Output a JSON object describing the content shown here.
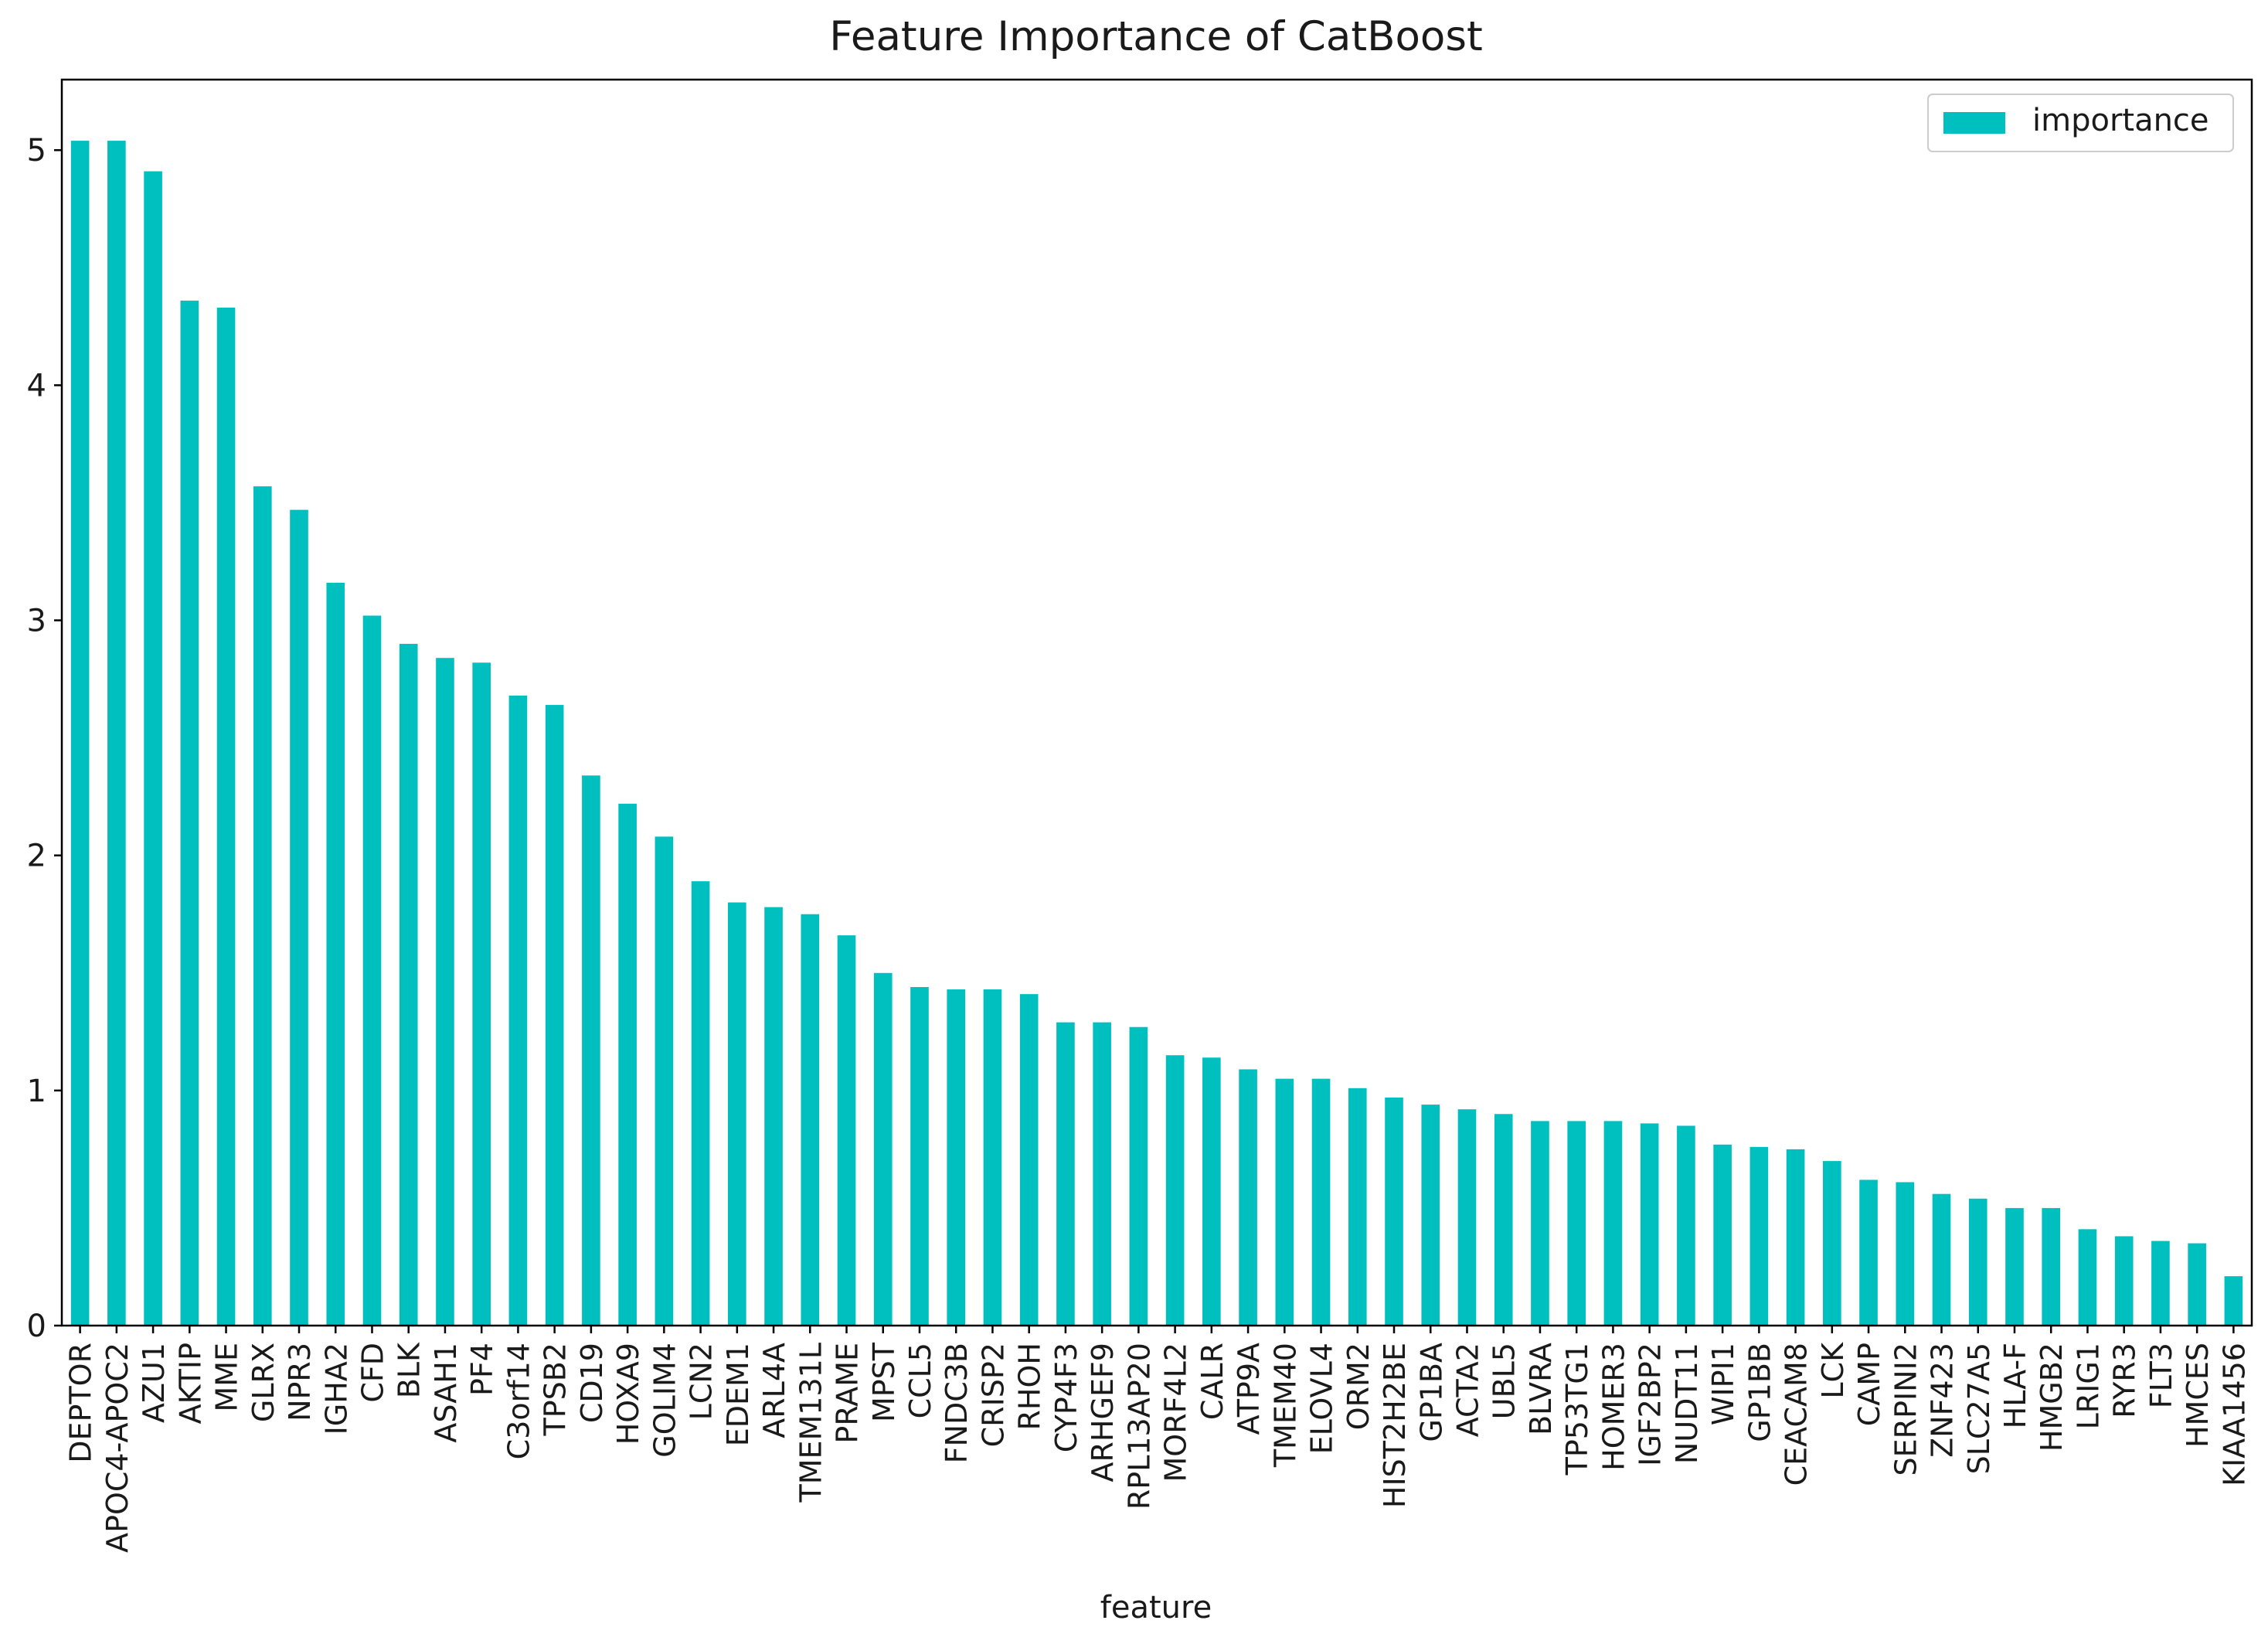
{
  "chart_data": {
    "type": "bar",
    "title": "Feature Importance of CatBoost",
    "xlabel": "feature",
    "ylabel": "",
    "ylim": [
      0,
      5.3
    ],
    "yticks": [
      0,
      1,
      2,
      3,
      4,
      5
    ],
    "grid": false,
    "legend": {
      "position": "top-right",
      "entries": [
        "importance"
      ]
    },
    "categories": [
      "DEPTOR",
      "APOC4-APOC2",
      "AZU1",
      "AKTIP",
      "MME",
      "GLRX",
      "NPR3",
      "IGHA2",
      "CFD",
      "BLK",
      "ASAH1",
      "PF4",
      "C3orf14",
      "TPSB2",
      "CD19",
      "HOXA9",
      "GOLIM4",
      "LCN2",
      "EDEM1",
      "ARL4A",
      "TMEM131L",
      "PRAME",
      "MPST",
      "CCL5",
      "FNDC3B",
      "CRISP2",
      "RHOH",
      "CYP4F3",
      "ARHGEF9",
      "RPL13AP20",
      "MORF4L2",
      "CALR",
      "ATP9A",
      "TMEM40",
      "ELOVL4",
      "ORM2",
      "HIST2H2BE",
      "GP1BA",
      "ACTA2",
      "UBL5",
      "BLVRA",
      "TP53TG1",
      "HOMER3",
      "IGF2BP2",
      "NUDT11",
      "WIPI1",
      "GP1BB",
      "CEACAM8",
      "LCK",
      "CAMP",
      "SERPINI2",
      "ZNF423",
      "SLC27A5",
      "HLA-F",
      "HMGB2",
      "LRIG1",
      "RYR3",
      "FLT3",
      "HMCES",
      "KIAA1456"
    ],
    "series": [
      {
        "name": "importance",
        "color": "#00bfbf",
        "values": [
          5.04,
          5.04,
          4.91,
          4.36,
          4.33,
          3.57,
          3.47,
          3.16,
          3.02,
          2.9,
          2.84,
          2.82,
          2.68,
          2.64,
          2.34,
          2.22,
          2.08,
          1.89,
          1.8,
          1.78,
          1.75,
          1.66,
          1.5,
          1.44,
          1.43,
          1.43,
          1.41,
          1.29,
          1.29,
          1.27,
          1.15,
          1.14,
          1.09,
          1.05,
          1.05,
          1.01,
          0.97,
          0.94,
          0.92,
          0.9,
          0.87,
          0.87,
          0.87,
          0.86,
          0.85,
          0.77,
          0.76,
          0.75,
          0.7,
          0.62,
          0.61,
          0.56,
          0.54,
          0.5,
          0.5,
          0.41,
          0.38,
          0.36,
          0.35,
          0.21
        ]
      }
    ]
  }
}
